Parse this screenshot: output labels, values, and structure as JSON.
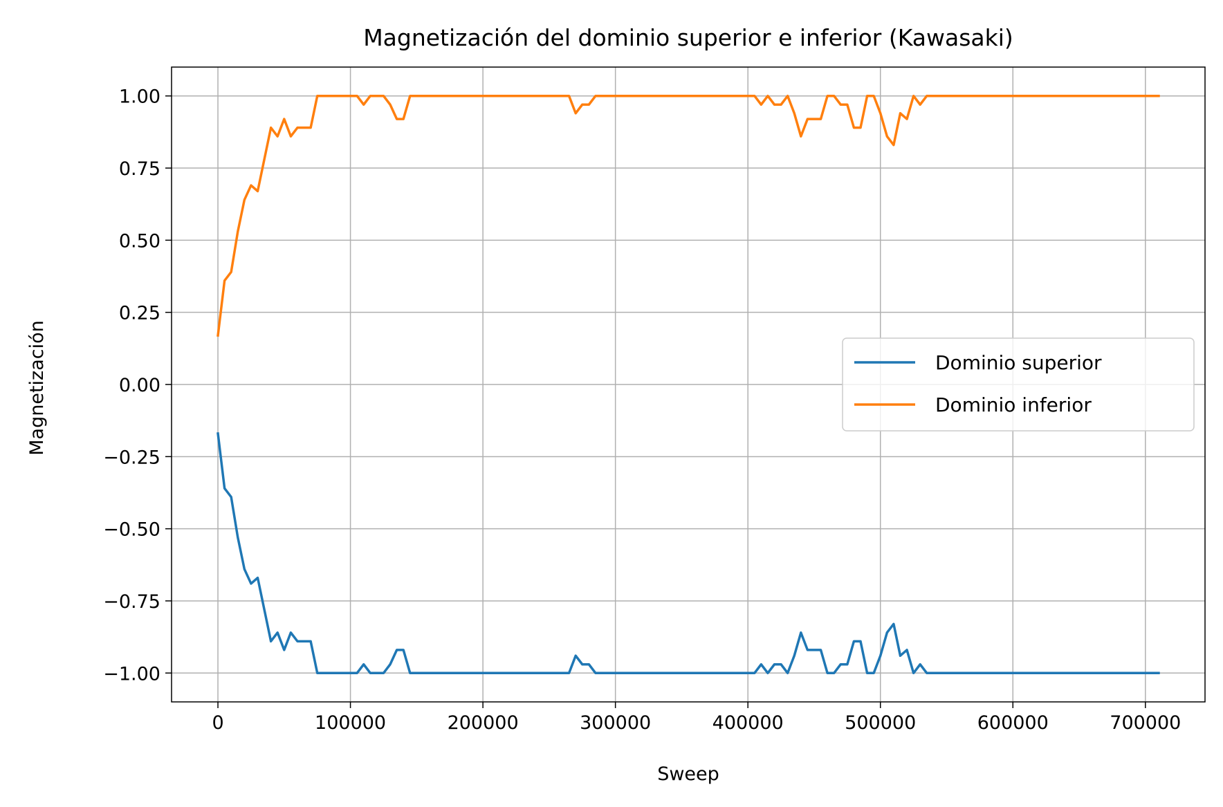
{
  "chart_data": {
    "type": "line",
    "title": "Magnetización del dominio superior e inferior (Kawasaki)",
    "xlabel": "Sweep",
    "ylabel": "Magnetización",
    "xlim": [
      -35000,
      745000
    ],
    "ylim": [
      -1.1,
      1.1
    ],
    "xticks": [
      0,
      100000,
      200000,
      300000,
      400000,
      500000,
      600000,
      700000
    ],
    "xtick_labels": [
      "0",
      "100000",
      "200000",
      "300000",
      "400000",
      "500000",
      "600000",
      "700000"
    ],
    "yticks": [
      1.0,
      0.75,
      0.5,
      0.25,
      0.0,
      -0.25,
      -0.5,
      -0.75,
      -1.0
    ],
    "ytick_labels": [
      "1.00",
      "0.75",
      "0.50",
      "0.25",
      "0.00",
      "−0.25",
      "−0.50",
      "−0.75",
      "−1.00"
    ],
    "grid": true,
    "legend_position": "center-right",
    "x": [
      0,
      5000,
      10000,
      15000,
      20000,
      25000,
      30000,
      35000,
      40000,
      45000,
      50000,
      55000,
      60000,
      65000,
      70000,
      75000,
      80000,
      85000,
      90000,
      95000,
      100000,
      105000,
      110000,
      115000,
      120000,
      125000,
      130000,
      135000,
      140000,
      145000,
      150000,
      155000,
      160000,
      165000,
      170000,
      175000,
      180000,
      185000,
      190000,
      195000,
      200000,
      205000,
      210000,
      215000,
      220000,
      225000,
      230000,
      235000,
      240000,
      245000,
      250000,
      255000,
      260000,
      265000,
      270000,
      275000,
      280000,
      285000,
      290000,
      295000,
      300000,
      305000,
      310000,
      315000,
      320000,
      325000,
      330000,
      335000,
      340000,
      345000,
      350000,
      355000,
      360000,
      365000,
      370000,
      375000,
      380000,
      385000,
      390000,
      395000,
      400000,
      405000,
      410000,
      415000,
      420000,
      425000,
      430000,
      435000,
      440000,
      445000,
      450000,
      455000,
      460000,
      465000,
      470000,
      475000,
      480000,
      485000,
      490000,
      495000,
      500000,
      505000,
      510000,
      515000,
      520000,
      525000,
      530000,
      535000,
      540000,
      545000,
      550000,
      555000,
      560000,
      565000,
      570000,
      575000,
      580000,
      585000,
      590000,
      595000,
      600000,
      605000,
      610000,
      615000,
      620000,
      625000,
      630000,
      635000,
      640000,
      645000,
      650000,
      655000,
      660000,
      665000,
      670000,
      675000,
      680000,
      685000,
      690000,
      695000,
      700000,
      705000,
      710000
    ],
    "series": [
      {
        "name": "Dominio superior",
        "color": "#1f77b4",
        "values": [
          -0.17,
          -0.36,
          -0.39,
          -0.53,
          -0.64,
          -0.69,
          -0.67,
          -0.78,
          -0.89,
          -0.86,
          -0.92,
          -0.86,
          -0.89,
          -0.89,
          -0.89,
          -1.0,
          -1.0,
          -1.0,
          -1.0,
          -1.0,
          -1.0,
          -1.0,
          -0.97,
          -1.0,
          -1.0,
          -1.0,
          -0.97,
          -0.92,
          -0.92,
          -1.0,
          -1.0,
          -1.0,
          -1.0,
          -1.0,
          -1.0,
          -1.0,
          -1.0,
          -1.0,
          -1.0,
          -1.0,
          -1.0,
          -1.0,
          -1.0,
          -1.0,
          -1.0,
          -1.0,
          -1.0,
          -1.0,
          -1.0,
          -1.0,
          -1.0,
          -1.0,
          -1.0,
          -1.0,
          -0.94,
          -0.97,
          -0.97,
          -1.0,
          -1.0,
          -1.0,
          -1.0,
          -1.0,
          -1.0,
          -1.0,
          -1.0,
          -1.0,
          -1.0,
          -1.0,
          -1.0,
          -1.0,
          -1.0,
          -1.0,
          -1.0,
          -1.0,
          -1.0,
          -1.0,
          -1.0,
          -1.0,
          -1.0,
          -1.0,
          -1.0,
          -1.0,
          -0.97,
          -1.0,
          -0.97,
          -0.97,
          -1.0,
          -0.94,
          -0.86,
          -0.92,
          -0.92,
          -0.92,
          -1.0,
          -1.0,
          -0.97,
          -0.97,
          -0.89,
          -0.89,
          -1.0,
          -1.0,
          -0.94,
          -0.86,
          -0.83,
          -0.94,
          -0.92,
          -1.0,
          -0.97,
          -1.0,
          -1.0,
          -1.0,
          -1.0,
          -1.0,
          -1.0,
          -1.0,
          -1.0,
          -1.0,
          -1.0,
          -1.0,
          -1.0,
          -1.0,
          -1.0,
          -1.0,
          -1.0,
          -1.0,
          -1.0,
          -1.0,
          -1.0,
          -1.0,
          -1.0,
          -1.0,
          -1.0,
          -1.0,
          -1.0,
          -1.0,
          -1.0,
          -1.0,
          -1.0,
          -1.0,
          -1.0,
          -1.0,
          -1.0,
          -1.0,
          -1.0
        ]
      },
      {
        "name": "Dominio inferior",
        "color": "#ff7f0e",
        "values": [
          0.17,
          0.36,
          0.39,
          0.53,
          0.64,
          0.69,
          0.67,
          0.78,
          0.89,
          0.86,
          0.92,
          0.86,
          0.89,
          0.89,
          0.89,
          1.0,
          1.0,
          1.0,
          1.0,
          1.0,
          1.0,
          1.0,
          0.97,
          1.0,
          1.0,
          1.0,
          0.97,
          0.92,
          0.92,
          1.0,
          1.0,
          1.0,
          1.0,
          1.0,
          1.0,
          1.0,
          1.0,
          1.0,
          1.0,
          1.0,
          1.0,
          1.0,
          1.0,
          1.0,
          1.0,
          1.0,
          1.0,
          1.0,
          1.0,
          1.0,
          1.0,
          1.0,
          1.0,
          1.0,
          0.94,
          0.97,
          0.97,
          1.0,
          1.0,
          1.0,
          1.0,
          1.0,
          1.0,
          1.0,
          1.0,
          1.0,
          1.0,
          1.0,
          1.0,
          1.0,
          1.0,
          1.0,
          1.0,
          1.0,
          1.0,
          1.0,
          1.0,
          1.0,
          1.0,
          1.0,
          1.0,
          1.0,
          0.97,
          1.0,
          0.97,
          0.97,
          1.0,
          0.94,
          0.86,
          0.92,
          0.92,
          0.92,
          1.0,
          1.0,
          0.97,
          0.97,
          0.89,
          0.89,
          1.0,
          1.0,
          0.94,
          0.86,
          0.83,
          0.94,
          0.92,
          1.0,
          0.97,
          1.0,
          1.0,
          1.0,
          1.0,
          1.0,
          1.0,
          1.0,
          1.0,
          1.0,
          1.0,
          1.0,
          1.0,
          1.0,
          1.0,
          1.0,
          1.0,
          1.0,
          1.0,
          1.0,
          1.0,
          1.0,
          1.0,
          1.0,
          1.0,
          1.0,
          1.0,
          1.0,
          1.0,
          1.0,
          1.0,
          1.0,
          1.0,
          1.0,
          1.0,
          1.0,
          1.0
        ]
      }
    ]
  }
}
